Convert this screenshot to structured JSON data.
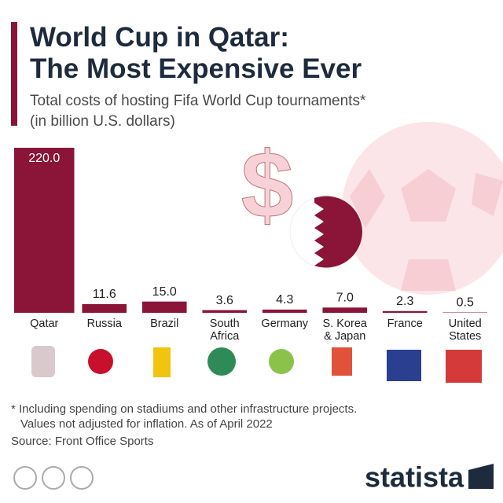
{
  "chart_data": {
    "type": "bar",
    "title": [
      "World Cup in Qatar:",
      "The Most Expensive Ever"
    ],
    "subtitle": [
      "Total costs of hosting Fifa World Cup tournaments*",
      "(in billion U.S. dollars)"
    ],
    "categories": [
      "Qatar",
      "Russia",
      "Brazil",
      "South Africa",
      "Germany",
      "S. Korea & Japan",
      "France",
      "United States"
    ],
    "values": [
      220.0,
      11.6,
      15.0,
      3.6,
      4.3,
      7.0,
      2.3,
      0.5
    ],
    "value_labels": [
      "220.0",
      "11.6",
      "15.0",
      "3.6",
      "4.3",
      "7.0",
      "2.3",
      "0.5"
    ],
    "color": "#8a1538",
    "notes": [
      "* Including spending on stadiums and other infrastructure projects.",
      "Values not adjusted for inflation. As of April 2022"
    ],
    "source": "Source: Front Office Sports",
    "brand": "statista"
  }
}
